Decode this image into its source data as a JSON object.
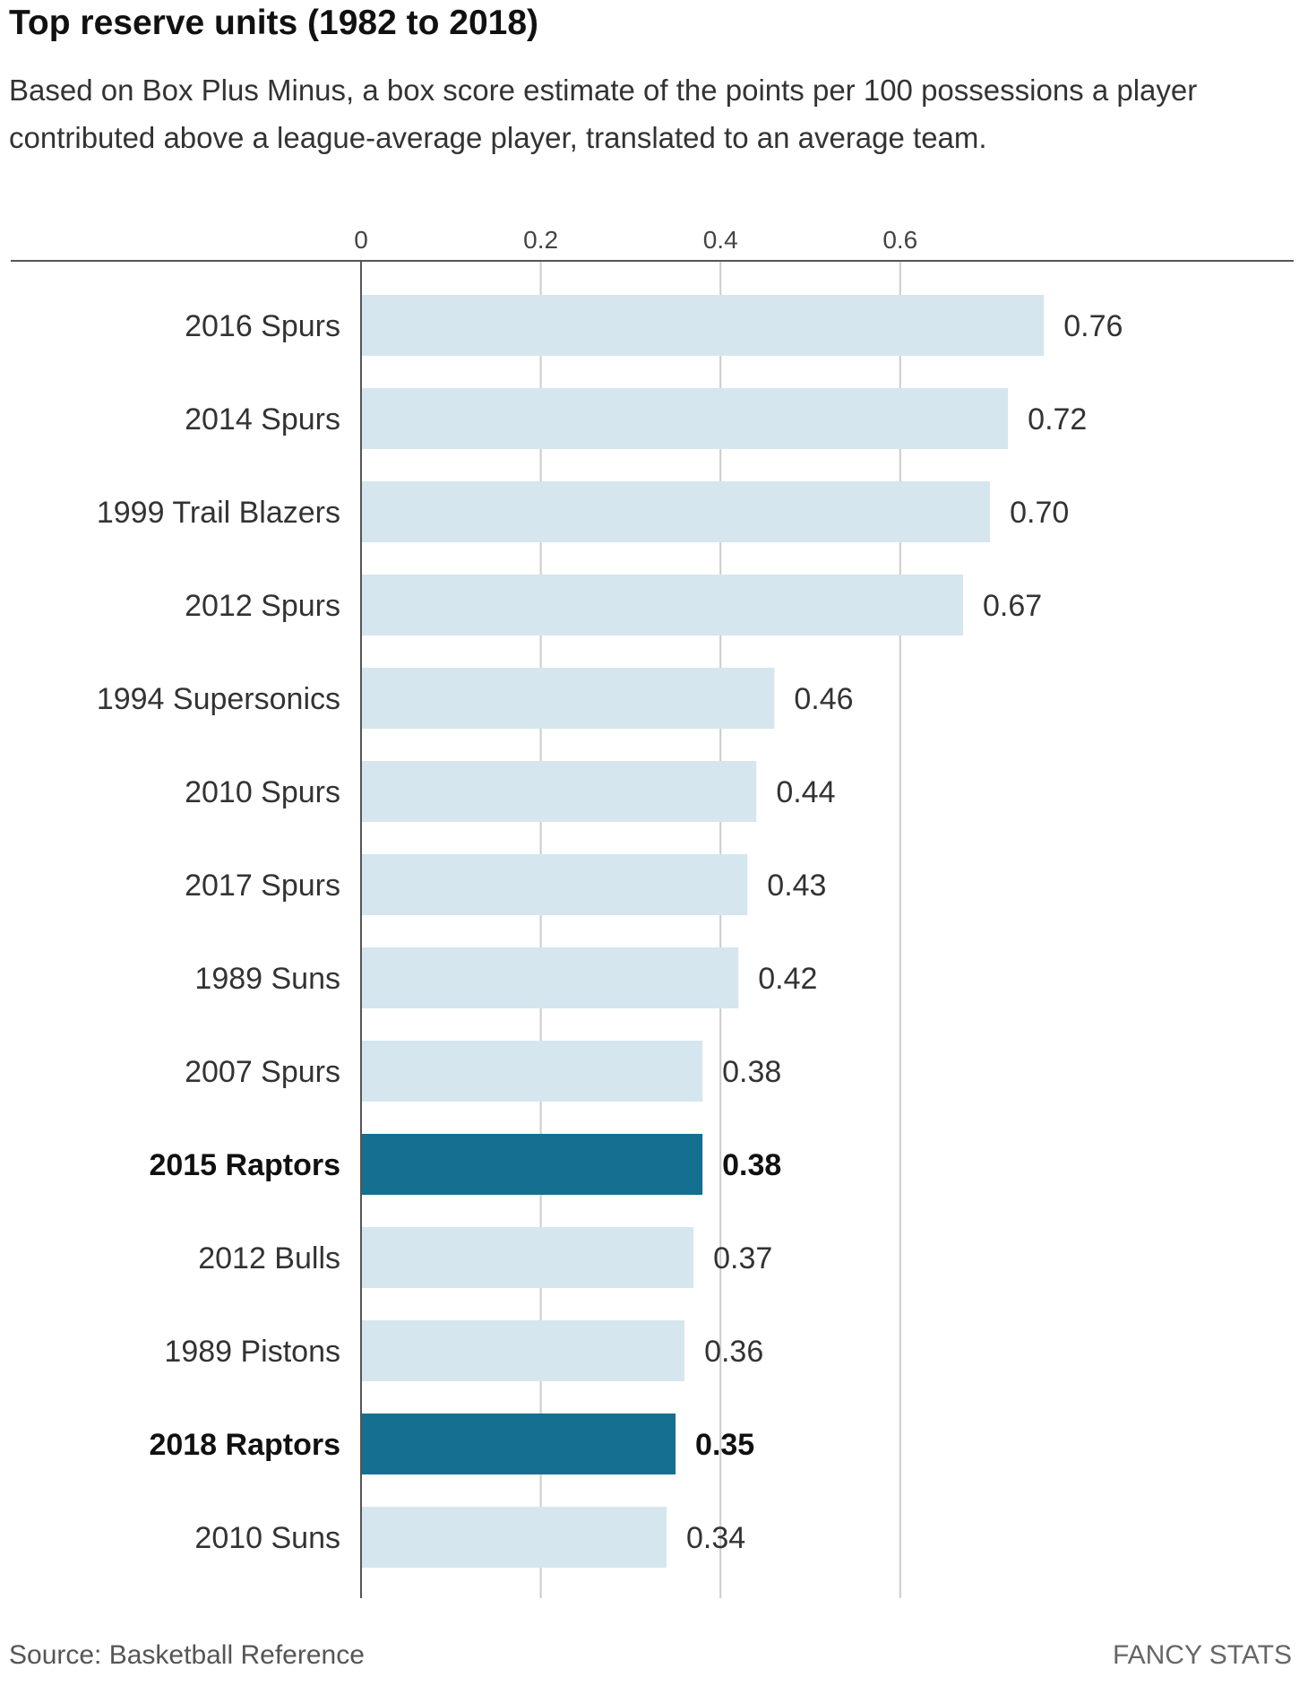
{
  "header": {
    "title": "Top reserve units (1982 to 2018)",
    "subtitle": "Based on Box Plus Minus, a box score estimate of the points per 100 possessions a player contributed above a league-average player, translated to an average team."
  },
  "footer": {
    "source": "Source: Basketball Reference",
    "brand": "FANCY STATS"
  },
  "colors": {
    "bar": "#d6e6ef",
    "highlight": "#146f91",
    "grid": "#cccccc",
    "axis": "#555555"
  },
  "chart_data": {
    "type": "bar",
    "orientation": "horizontal",
    "title": "Top reserve units (1982 to 2018)",
    "xlabel": "",
    "ylabel": "",
    "xlim": [
      0,
      0.8
    ],
    "xticks": [
      0,
      0.2,
      0.4,
      0.6
    ],
    "xtick_labels": [
      "0",
      "0.2",
      "0.4",
      "0.6"
    ],
    "grid": true,
    "categories": [
      "2016 Spurs",
      "2014 Spurs",
      "1999 Trail Blazers",
      "2012 Spurs",
      "1994 Supersonics",
      "2010 Spurs",
      "2017 Spurs",
      "1989 Suns",
      "2007 Spurs",
      "2015 Raptors",
      "2012 Bulls",
      "1989 Pistons",
      "2018 Raptors",
      "2010 Suns"
    ],
    "values": [
      0.76,
      0.72,
      0.7,
      0.67,
      0.46,
      0.44,
      0.43,
      0.42,
      0.38,
      0.38,
      0.37,
      0.36,
      0.35,
      0.34
    ],
    "value_labels": [
      "0.76",
      "0.72",
      "0.70",
      "0.67",
      "0.46",
      "0.44",
      "0.43",
      "0.42",
      "0.38",
      "0.38",
      "0.37",
      "0.36",
      "0.35",
      "0.34"
    ],
    "highlighted": [
      "2015 Raptors",
      "2018 Raptors"
    ]
  }
}
